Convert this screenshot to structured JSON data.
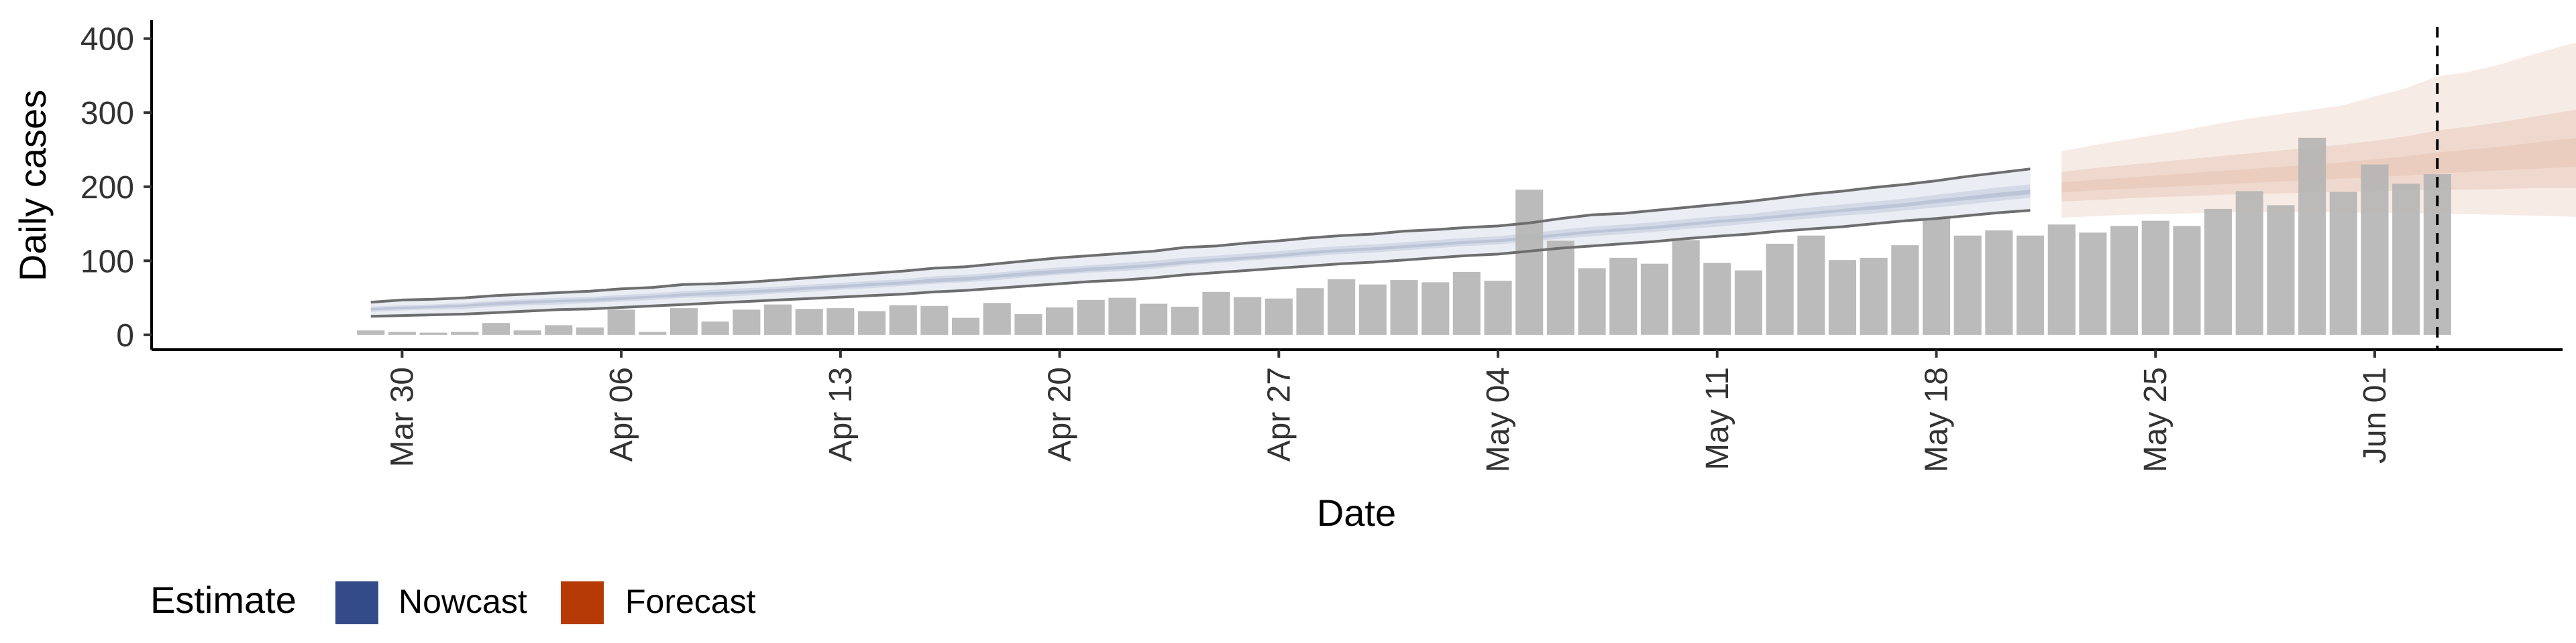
{
  "chart_data": {
    "type": "bar",
    "xlabel": "Date",
    "ylabel": "Daily cases",
    "y_ticks": [
      0,
      100,
      200,
      300,
      400
    ],
    "ylim": [
      -20,
      425
    ],
    "x_ticks": [
      {
        "date": "2020-03-30",
        "label": "Mar 30"
      },
      {
        "date": "2020-04-06",
        "label": "Apr 06"
      },
      {
        "date": "2020-04-13",
        "label": "Apr 13"
      },
      {
        "date": "2020-04-20",
        "label": "Apr 20"
      },
      {
        "date": "2020-04-27",
        "label": "Apr 27"
      },
      {
        "date": "2020-05-04",
        "label": "May 04"
      },
      {
        "date": "2020-05-11",
        "label": "May 11"
      },
      {
        "date": "2020-05-18",
        "label": "May 18"
      },
      {
        "date": "2020-05-25",
        "label": "May 25"
      },
      {
        "date": "2020-06-01",
        "label": "Jun 01"
      }
    ],
    "xlim": [
      "2020-03-22",
      "2020-06-07"
    ],
    "vline_date": "2020-06-03",
    "grid": false,
    "legend_position": "bottom-left",
    "legend": {
      "title": "Estimate",
      "items": [
        {
          "label": "Nowcast",
          "color": "#344b8a"
        },
        {
          "label": "Forecast",
          "color": "#b53a06"
        }
      ]
    },
    "bar_color": "#b5b5b5",
    "reported_cases": {
      "start_date": "2020-03-29",
      "values": [
        6,
        4,
        3,
        4,
        16,
        6,
        13,
        10,
        34,
        4,
        36,
        18,
        34,
        41,
        35,
        36,
        32,
        40,
        39,
        23,
        43,
        28,
        37,
        47,
        50,
        42,
        38,
        58,
        51,
        49,
        63,
        75,
        68,
        74,
        71,
        85,
        73,
        196,
        127,
        90,
        104,
        96,
        128,
        97,
        87,
        123,
        134,
        101,
        104,
        121,
        157,
        134,
        141,
        134,
        149,
        138,
        147,
        154,
        147,
        170,
        194,
        175,
        266,
        193,
        230,
        204,
        217
      ]
    },
    "nowcast": {
      "start_date": "2020-03-29",
      "color": "#344b8a",
      "upper_90": [
        44,
        47,
        48,
        50,
        53,
        55,
        57,
        59,
        62,
        64,
        68,
        69,
        71,
        74,
        77,
        80,
        83,
        86,
        90,
        92,
        96,
        100,
        104,
        107,
        110,
        113,
        118,
        120,
        124,
        127,
        131,
        134,
        136,
        140,
        142,
        145,
        147,
        151,
        157,
        162,
        164,
        168,
        172,
        176,
        180,
        185,
        190,
        194,
        199,
        203,
        208,
        214,
        219,
        224
      ],
      "lower_90": [
        25,
        26,
        27,
        28,
        30,
        32,
        34,
        35,
        37,
        39,
        41,
        43,
        45,
        47,
        49,
        51,
        53,
        55,
        58,
        60,
        63,
        66,
        69,
        72,
        74,
        77,
        81,
        84,
        87,
        90,
        93,
        96,
        98,
        101,
        104,
        107,
        109,
        113,
        117,
        120,
        123,
        126,
        130,
        133,
        136,
        140,
        143,
        146,
        150,
        154,
        157,
        161,
        165,
        168
      ],
      "upper_50": [
        38,
        40,
        41,
        43,
        46,
        48,
        50,
        51,
        54,
        56,
        59,
        61,
        63,
        65,
        68,
        70,
        73,
        75,
        79,
        81,
        84,
        88,
        91,
        94,
        97,
        100,
        104,
        107,
        110,
        113,
        117,
        120,
        122,
        125,
        128,
        131,
        133,
        137,
        142,
        146,
        149,
        152,
        156,
        160,
        163,
        168,
        172,
        176,
        180,
        184,
        189,
        194,
        199,
        203
      ],
      "lower_50": [
        31,
        33,
        34,
        35,
        38,
        40,
        41,
        43,
        45,
        47,
        50,
        51,
        53,
        56,
        58,
        61,
        63,
        66,
        69,
        71,
        74,
        78,
        81,
        84,
        86,
        89,
        94,
        97,
        100,
        103,
        106,
        109,
        111,
        114,
        117,
        120,
        122,
        126,
        130,
        133,
        136,
        139,
        143,
        146,
        150,
        154,
        157,
        161,
        164,
        168,
        172,
        176,
        181,
        185
      ],
      "upper_20": [
        36,
        38,
        39,
        41,
        44,
        46,
        47,
        49,
        51,
        53,
        56,
        58,
        60,
        62,
        65,
        67,
        70,
        72,
        76,
        78,
        81,
        85,
        88,
        91,
        93,
        96,
        100,
        103,
        106,
        109,
        113,
        116,
        118,
        121,
        124,
        127,
        129,
        133,
        137,
        141,
        144,
        147,
        151,
        155,
        158,
        162,
        166,
        170,
        174,
        178,
        183,
        187,
        192,
        196
      ],
      "lower_20": [
        33,
        35,
        36,
        38,
        40,
        42,
        44,
        45,
        47,
        50,
        52,
        54,
        56,
        58,
        61,
        63,
        66,
        68,
        71,
        73,
        77,
        80,
        83,
        86,
        89,
        92,
        96,
        99,
        102,
        105,
        109,
        112,
        114,
        117,
        120,
        123,
        125,
        129,
        133,
        137,
        140,
        143,
        147,
        151,
        154,
        158,
        162,
        166,
        169,
        173,
        178,
        182,
        186,
        190
      ]
    },
    "forecast": {
      "start_date": "2020-05-22",
      "color": "#b53a06",
      "upper_90": [
        248,
        256,
        263,
        270,
        277,
        285,
        292,
        298,
        304,
        310,
        322,
        333,
        349,
        355,
        365,
        378,
        390,
        400
      ],
      "lower_90": [
        158,
        160,
        162,
        163,
        164,
        165,
        166,
        166,
        166,
        165,
        165,
        164,
        164,
        163,
        162,
        161,
        160,
        158
      ],
      "upper_50": [
        220,
        225,
        229,
        233,
        237,
        241,
        245,
        249,
        253,
        257,
        262,
        268,
        276,
        281,
        287,
        294,
        301,
        307
      ],
      "lower_50": [
        180,
        182,
        184,
        186,
        187,
        189,
        190,
        191,
        192,
        193,
        194,
        195,
        196,
        196,
        197,
        198,
        198,
        198
      ],
      "upper_20": [
        206,
        209,
        212,
        215,
        218,
        221,
        224,
        227,
        230,
        233,
        237,
        241,
        246,
        250,
        254,
        259,
        264,
        268
      ],
      "lower_20": [
        192,
        195,
        197,
        199,
        201,
        203,
        205,
        207,
        209,
        211,
        213,
        215,
        218,
        220,
        222,
        224,
        226,
        228
      ]
    }
  }
}
